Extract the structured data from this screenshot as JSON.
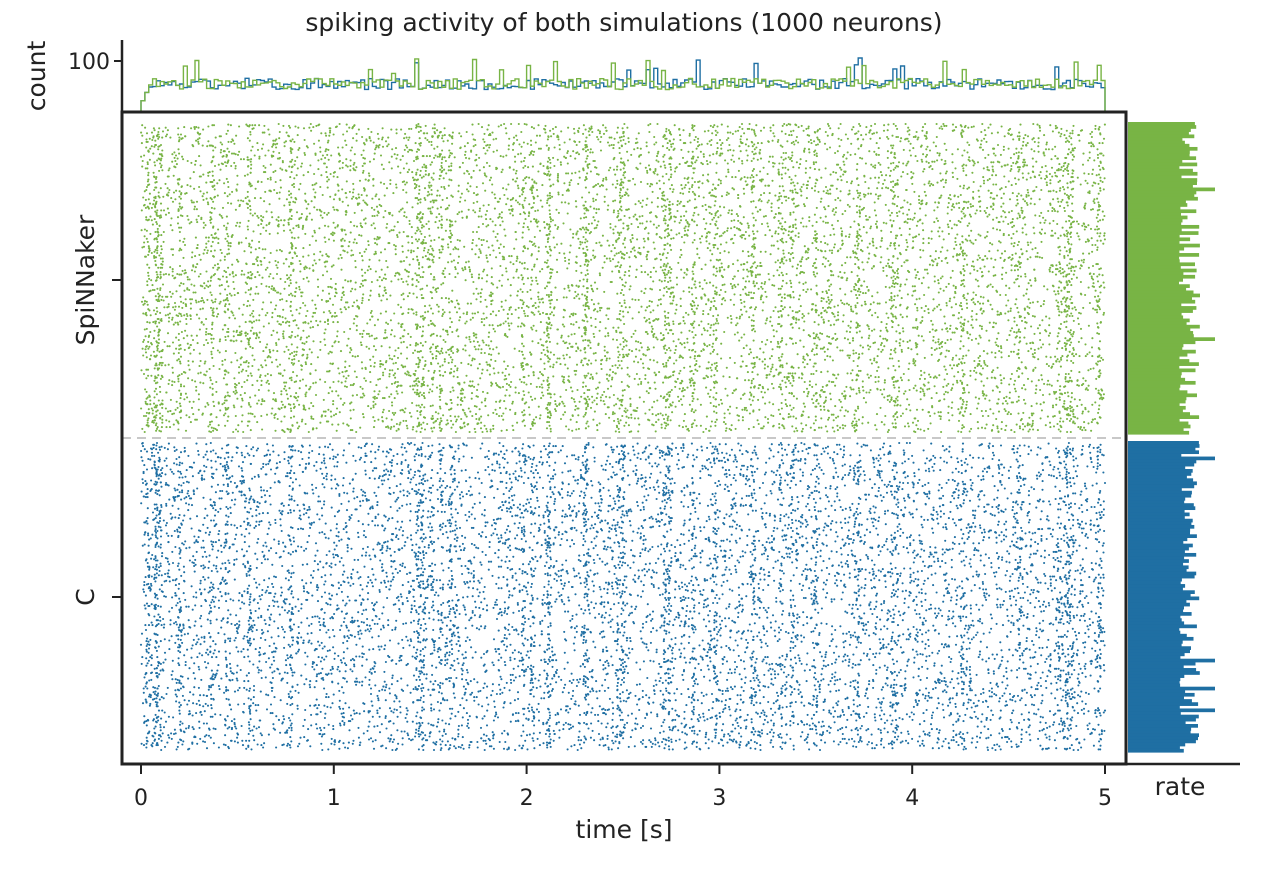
{
  "colors": {
    "spinnaker": "#78b445",
    "c": "#1f6fa3",
    "axis": "#222222",
    "separator": "#c8c8c8"
  },
  "chart_data": [
    {
      "type": "scatter",
      "title": "spiking activity of both simulations (1000 neurons)",
      "xlabel": "time [s]",
      "xlim": [
        0,
        5
      ],
      "xticks": [
        "0",
        "1",
        "2",
        "3",
        "4",
        "5"
      ],
      "ylim": [
        0,
        1000
      ],
      "ytick_labels": [
        "C",
        "SpiNNaker"
      ],
      "series": [
        {
          "name": "C",
          "neuron_range": [
            0,
            499
          ],
          "approx_rate_hz": 5
        },
        {
          "name": "SpiNNaker",
          "neuron_range": [
            500,
            999
          ],
          "approx_rate_hz": 5
        }
      ],
      "grid": false,
      "separator": "dashed line at neuron 500"
    },
    {
      "type": "line",
      "description": "population spike-count histogram over time",
      "ylabel": "count",
      "yticks": [
        "100"
      ],
      "xlim": [
        0,
        5
      ],
      "bin_width_s": 0.02,
      "series": [
        {
          "name": "C",
          "typical_count": 55,
          "peak_count": 106
        },
        {
          "name": "SpiNNaker",
          "typical_count": 55,
          "peak_count": 110
        }
      ]
    },
    {
      "type": "bar",
      "orientation": "horizontal",
      "description": "per-neuron firing rate",
      "xlabel": "rate",
      "series": [
        {
          "name": "SpiNNaker",
          "neuron_range": [
            500,
            999
          ],
          "typical_rate_hz": 5
        },
        {
          "name": "C",
          "neuron_range": [
            0,
            499
          ],
          "typical_rate_hz": 5
        }
      ]
    }
  ]
}
